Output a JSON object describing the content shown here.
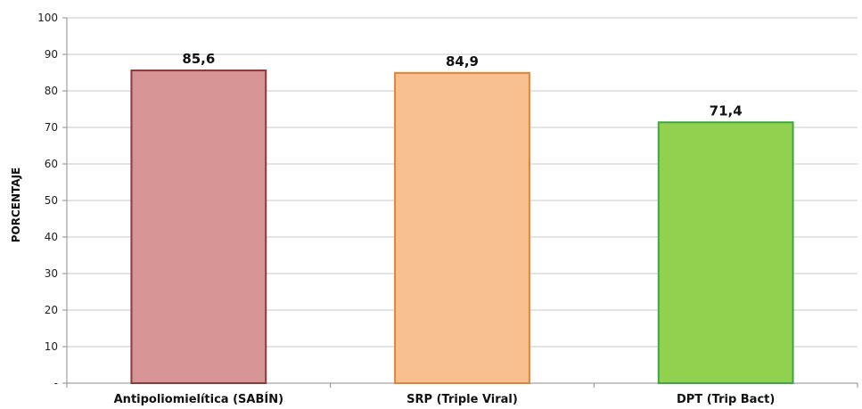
{
  "chart_data": {
    "type": "bar",
    "title": "",
    "xlabel": "",
    "ylabel": "PORCENTAJE",
    "ylim": [
      0,
      100
    ],
    "yticks": [
      0,
      10,
      20,
      30,
      40,
      50,
      60,
      70,
      80,
      90,
      100
    ],
    "ytick_labels": [
      "-",
      "10",
      "20",
      "30",
      "40",
      "50",
      "60",
      "70",
      "80",
      "90",
      "100"
    ],
    "grid": true,
    "categories": [
      "Antipoliomielítica (SABÍN)",
      "SRP  (Triple Viral)",
      "DPT (Trip Bact)"
    ],
    "values": [
      85.6,
      84.9,
      71.4
    ],
    "value_labels": [
      "85,6",
      "84,9",
      "71,4"
    ],
    "colors": [
      {
        "fill": "#D79494",
        "stroke": "#8B3A3A"
      },
      {
        "fill": "#F8C090",
        "stroke": "#E8822E"
      },
      {
        "fill": "#92D050",
        "stroke": "#3FA73F"
      }
    ]
  }
}
